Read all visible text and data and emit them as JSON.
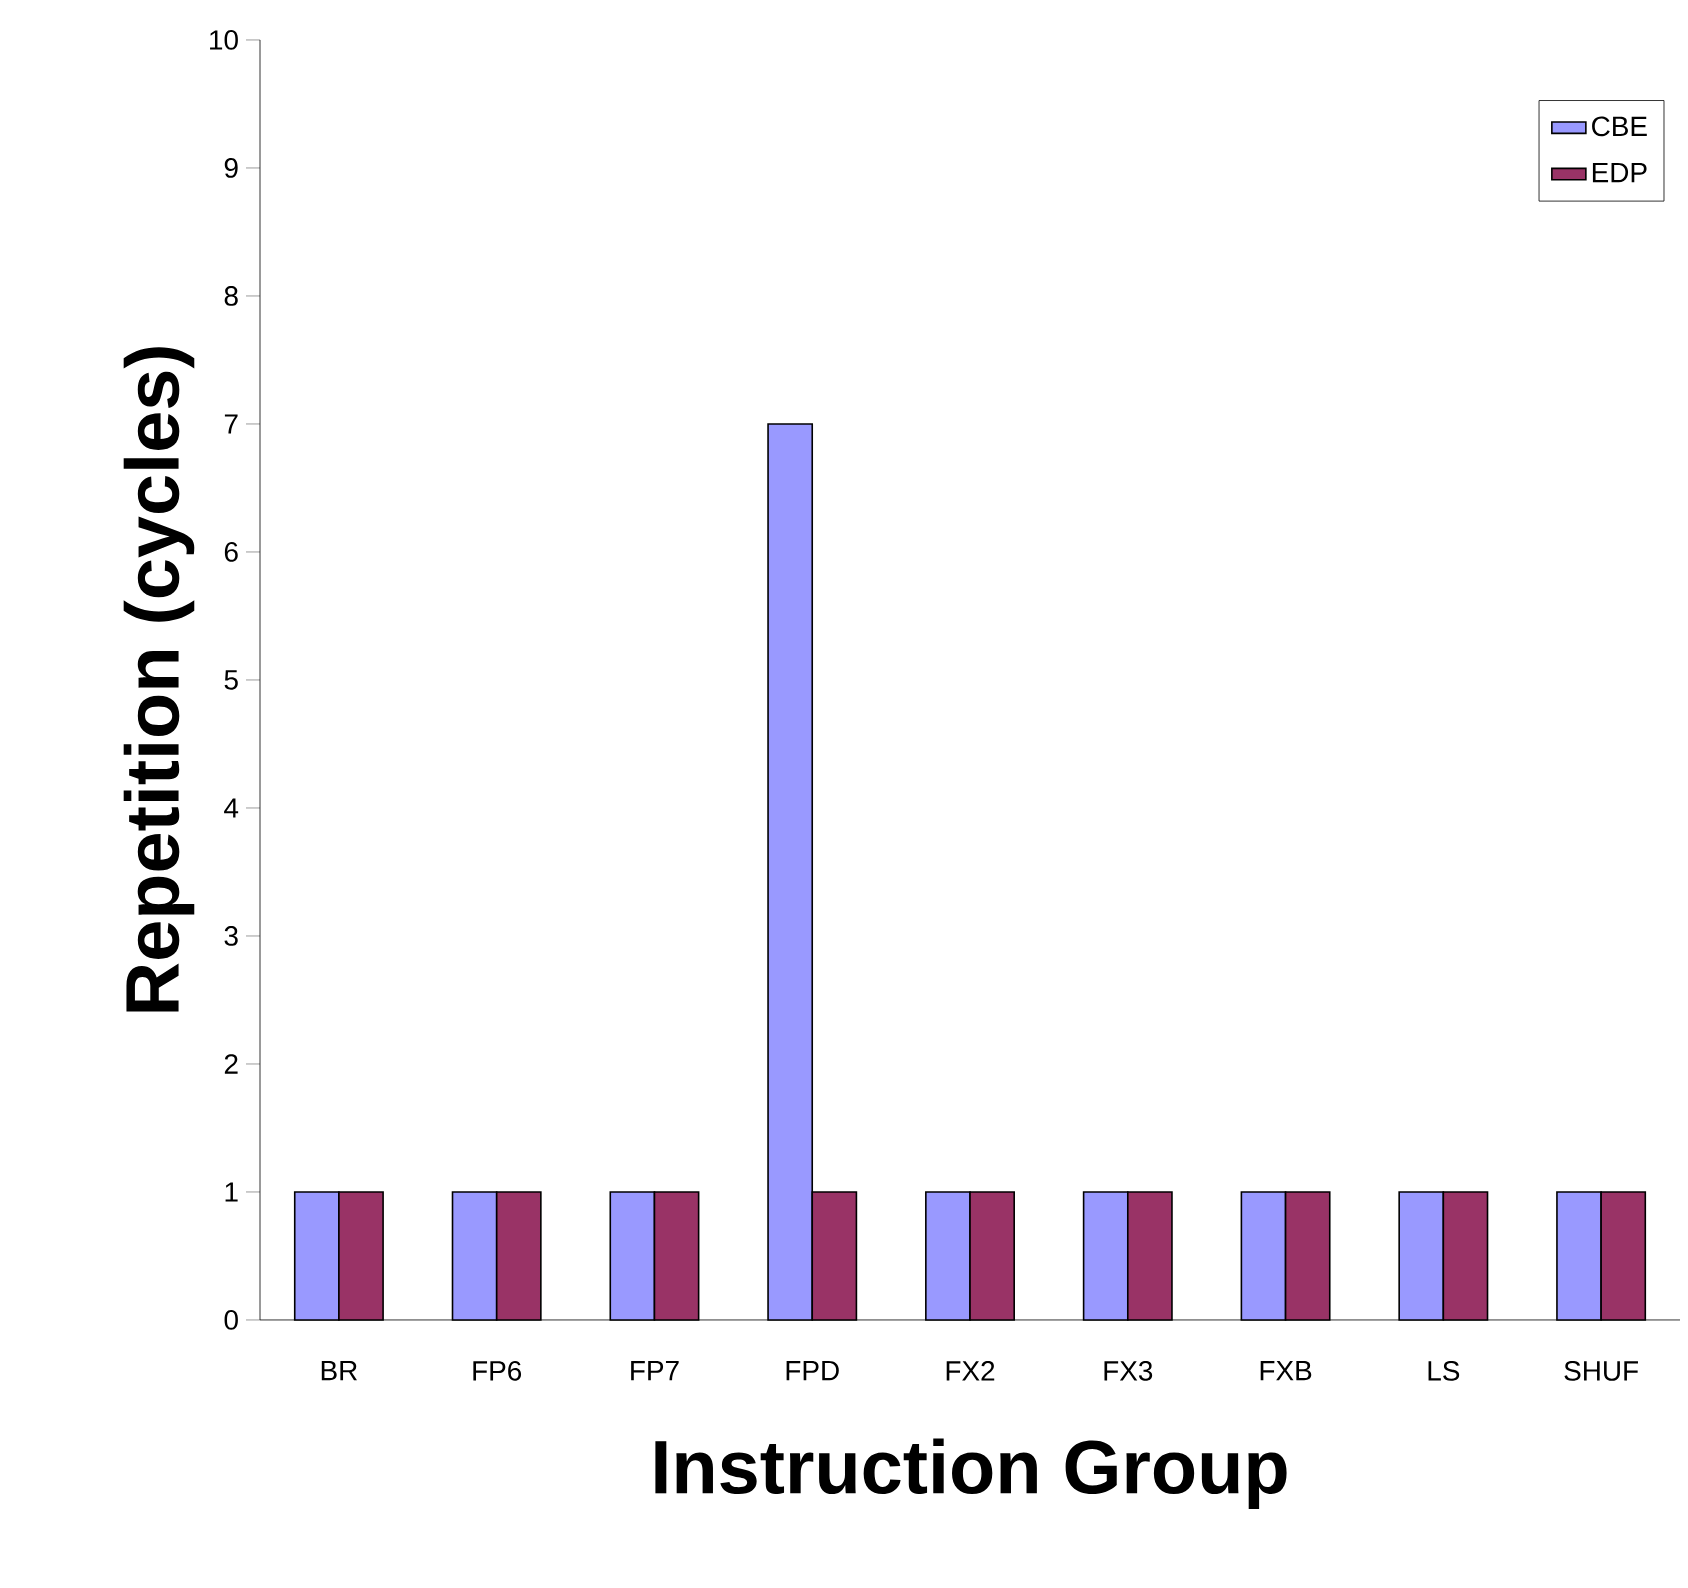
{
  "chart_data": {
    "type": "bar",
    "xlabel": "Instruction Group",
    "ylabel": "Repetition (cycles)",
    "categories": [
      "BR",
      "FP6",
      "FP7",
      "FPD",
      "FX2",
      "FX3",
      "FXB",
      "LS",
      "SHUF"
    ],
    "series": [
      {
        "name": "CBE",
        "color": "#9999ff",
        "values": [
          1,
          1,
          1,
          7,
          1,
          1,
          1,
          1,
          1
        ]
      },
      {
        "name": "EDP",
        "color": "#993366",
        "values": [
          1,
          1,
          1,
          1,
          1,
          1,
          1,
          1,
          1
        ]
      }
    ],
    "ylim": [
      0,
      10
    ],
    "yticks": [
      0,
      1,
      2,
      3,
      4,
      5,
      6,
      7,
      8,
      9,
      10
    ],
    "grid": false,
    "legend": "top right"
  }
}
